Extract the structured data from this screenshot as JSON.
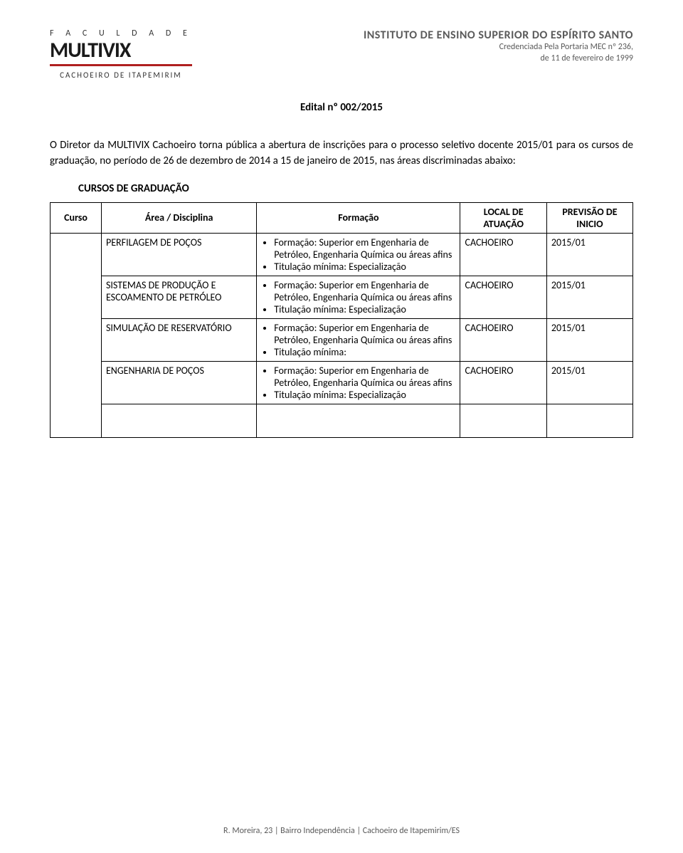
{
  "logo": {
    "faculdade": "F A C U L D A D E",
    "brand": "MULTIVIX",
    "campus": "CACHOEIRO DE ITAPEMIRIM"
  },
  "institute": {
    "title": "INSTITUTO DE ENSINO SUPERIOR DO ESPÍRITO SANTO",
    "line1": "Credenciada Pela Portaria MEC nº 236,",
    "line2": "de 11 de fevereiro de 1999"
  },
  "edital_title": "Edital nº 002/2015",
  "intro": "O Diretor da MULTIVIX Cachoeiro torna pública a abertura de inscrições para o processo seletivo docente 2015/01 para os cursos de graduação, no período de 26  de dezembro de 2014 a 15 de janeiro de 2015, nas áreas discriminadas abaixo:",
  "section_heading": "CURSOS DE GRADUAÇÃO",
  "table": {
    "headers": {
      "curso": "Curso",
      "area": "Área / Disciplina",
      "formacao": "Formação",
      "local": "LOCAL DE ATUAÇÃO",
      "previsao": "PREVISÃO DE INICIO"
    },
    "rows": [
      {
        "disciplina": "PERFILAGEM DE POÇOS",
        "formacao_bullets": [
          "Formação: Superior em Engenharia de Petróleo, Engenharia Química ou áreas afins",
          "Titulação mínima: Especialização"
        ],
        "local": "CACHOEIRO",
        "previsao": "2015/01"
      },
      {
        "disciplina": "SISTEMAS DE PRODUÇÃO E ESCOAMENTO DE PETRÓLEO",
        "formacao_bullets": [
          "Formação: Superior em Engenharia de Petróleo, Engenharia Química ou áreas afins",
          "Titulação mínima: Especialização"
        ],
        "local": "CACHOEIRO",
        "previsao": "2015/01"
      },
      {
        "disciplina": "SIMULAÇÃO DE RESERVATÓRIO",
        "formacao_bullets": [
          "Formação: Superior em Engenharia de Petróleo, Engenharia Química ou áreas afins",
          "Titulação mínima:"
        ],
        "local": "CACHOEIRO",
        "previsao": "2015/01"
      },
      {
        "disciplina": "ENGENHARIA DE POÇOS",
        "formacao_bullets": [
          "Formação: Superior em Engenharia de Petróleo, Engenharia Química ou áreas afins",
          "Titulação mínima: Especialização"
        ],
        "local": "CACHOEIRO",
        "previsao": "2015/01"
      }
    ]
  },
  "footer": "R. Moreira, 23 | Bairro Independência | Cachoeiro de Itapemirim/ES",
  "colors": {
    "text": "#000000",
    "gray_text": "#5a5a5a",
    "accent": "#b02020",
    "background": "#ffffff",
    "border": "#000000"
  },
  "fonts": {
    "body_size_pt": 11,
    "title_weight": 700
  }
}
